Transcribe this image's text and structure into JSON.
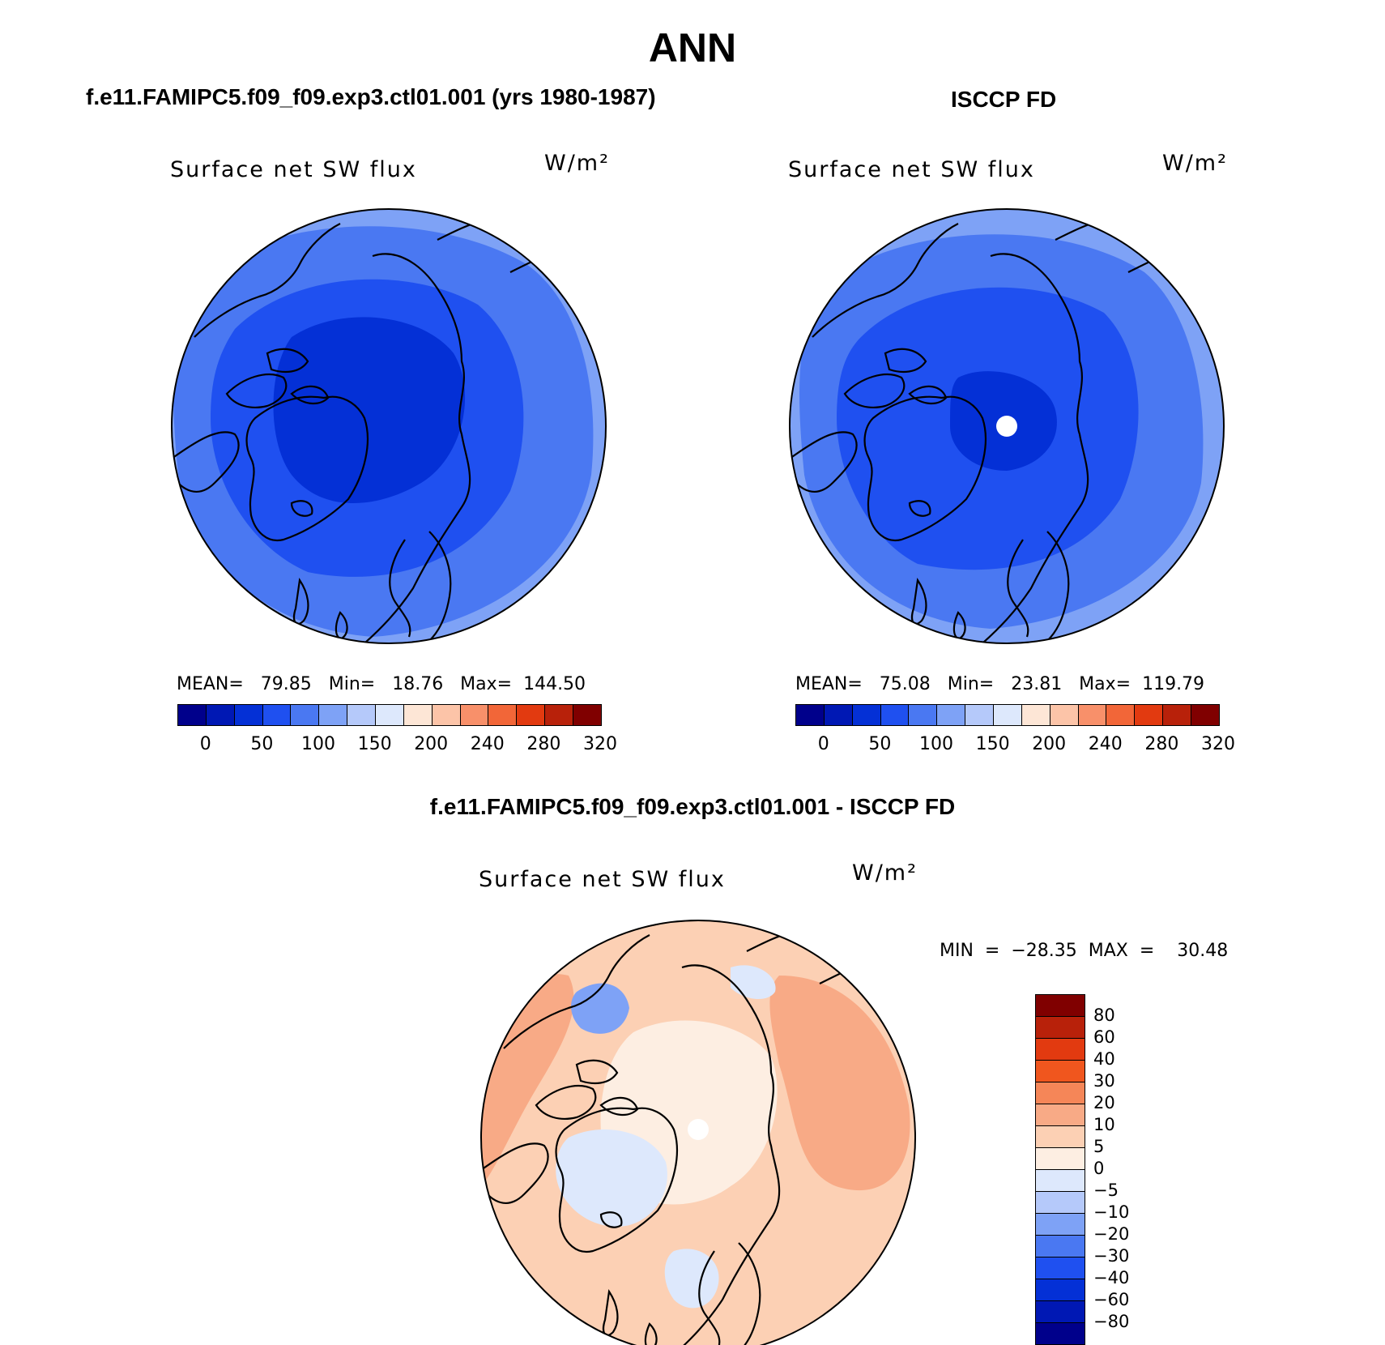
{
  "page": {
    "title": "ANN"
  },
  "panels": [
    {
      "title": "f.e11.FAMIPC5.f09_f09.exp3.ctl01.001 (yrs 1980-1987)",
      "variable": "Surface net SW flux",
      "units": "W/m²",
      "stats": "MEAN=   79.85   Min=   18.76   Max=  144.50"
    },
    {
      "title": "ISCCP FD",
      "variable": "Surface net SW flux",
      "units": "W/m²",
      "stats": "MEAN=   75.08   Min=   23.81   Max=  119.79"
    },
    {
      "title": "f.e11.FAMIPC5.f09_f09.exp3.ctl01.001 - ISCCP FD",
      "variable": "Surface net SW flux",
      "units": "W/m²",
      "stats": "MIN  =  −28.35  MAX  =    30.48"
    }
  ],
  "colorbar_abs": {
    "colors": [
      "#00008b",
      "#0018b4",
      "#0430d6",
      "#1f50f0",
      "#4a78f2",
      "#7ea2f6",
      "#b5c9fa",
      "#dde8fc",
      "#fde6d6",
      "#fcc4a8",
      "#f8906a",
      "#f26638",
      "#e23a10",
      "#b8210a",
      "#800000"
    ],
    "ticks": [
      "0",
      "50",
      "100",
      "150",
      "200",
      "240",
      "280",
      "320"
    ]
  },
  "colorbar_diff": {
    "colors": [
      "#800000",
      "#b8210a",
      "#e23a10",
      "#f0561e",
      "#f58658",
      "#f8aa86",
      "#fcd0b4",
      "#fdeee2",
      "#dde8fc",
      "#b5c9fa",
      "#7ea2f6",
      "#4a78f2",
      "#1f50f0",
      "#0430d6",
      "#0018b4",
      "#00008b"
    ],
    "ticks": [
      "80",
      "60",
      "40",
      "30",
      "20",
      "10",
      "5",
      "0",
      "−5",
      "−10",
      "−20",
      "−30",
      "−40",
      "−60",
      "−80"
    ]
  },
  "map_fills": {
    "panel1": [
      "#4a78f2",
      "#7ea2f6",
      "#1f50f0",
      "#0430d6"
    ],
    "panel2": [
      "#4a78f2",
      "#7ea2f6",
      "#1f50f0",
      "#0430d6"
    ],
    "panel3": [
      "#fdeee2",
      "#f8aa86",
      "#fcd0b4",
      "#dde8fc",
      "#7ea2f6"
    ]
  }
}
